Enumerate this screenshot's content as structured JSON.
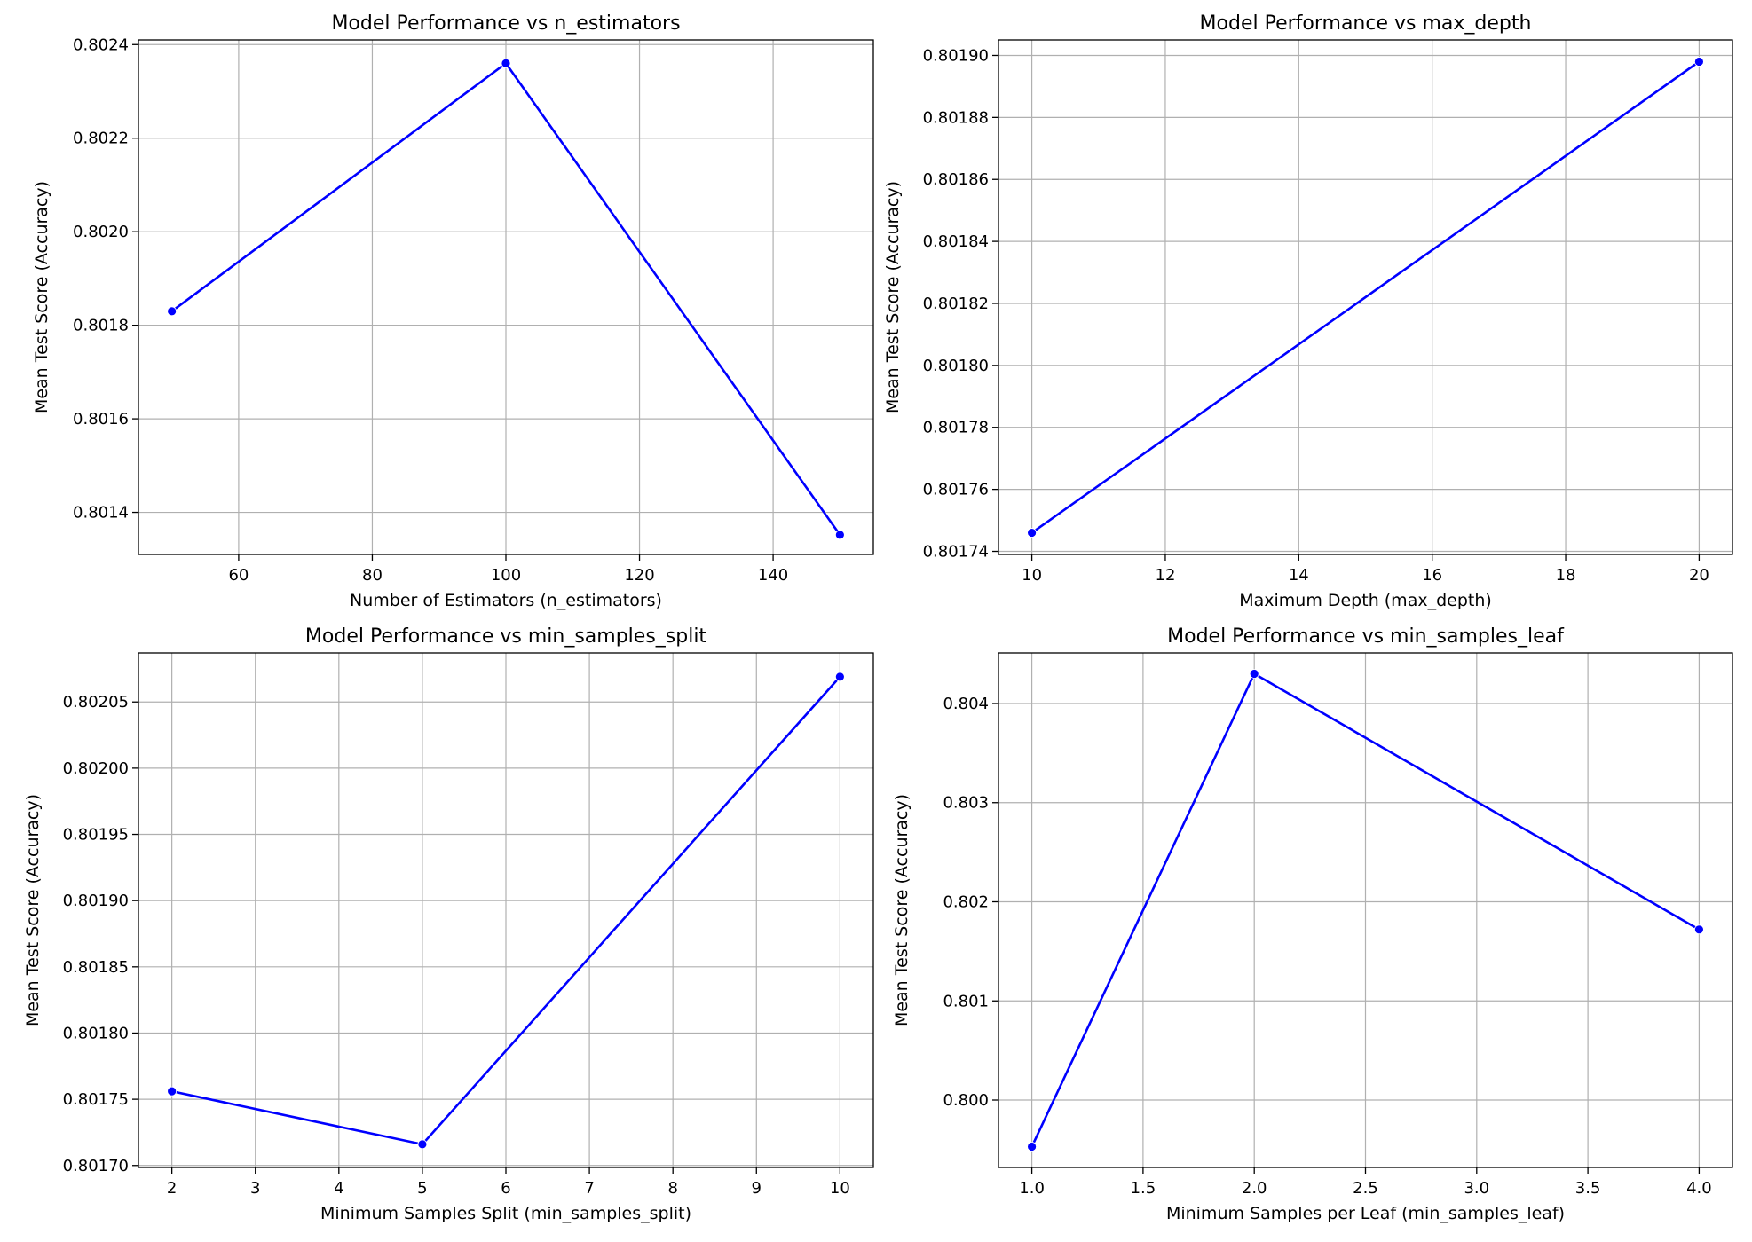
{
  "style": {
    "line_color": "#0000ff",
    "grid_color": "#b0b0b0",
    "background": "#ffffff"
  },
  "chart_data": [
    {
      "type": "line",
      "title": "Model Performance vs n_estimators",
      "xlabel": "Number of Estimators (n_estimators)",
      "ylabel": "Mean Test Score (Accuracy)",
      "grid": true,
      "marker": "circle",
      "x": [
        50,
        100,
        150
      ],
      "series": [
        {
          "values": [
            0.80183,
            0.80236,
            0.801352
          ]
        }
      ],
      "xlim": [
        45,
        155
      ],
      "ylim": [
        0.80131,
        0.80241
      ],
      "xticks": [
        60,
        80,
        100,
        120,
        140
      ],
      "xtick_labels": [
        "60",
        "80",
        "100",
        "120",
        "140"
      ],
      "yticks": [
        0.8014,
        0.8016,
        0.8018,
        0.802,
        0.8022,
        0.8024
      ],
      "ytick_labels": [
        "0.8014",
        "0.8016",
        "0.8018",
        "0.8020",
        "0.8022",
        "0.8024"
      ]
    },
    {
      "type": "line",
      "title": "Model Performance vs max_depth",
      "xlabel": "Maximum Depth (max_depth)",
      "ylabel": "Mean Test Score (Accuracy)",
      "grid": true,
      "marker": "circle",
      "x": [
        10,
        20
      ],
      "series": [
        {
          "values": [
            0.801746,
            0.801898
          ]
        }
      ],
      "xlim": [
        9.5,
        20.5
      ],
      "ylim": [
        0.801739,
        0.801905
      ],
      "xticks": [
        10,
        12,
        14,
        16,
        18,
        20
      ],
      "xtick_labels": [
        "10",
        "12",
        "14",
        "16",
        "18",
        "20"
      ],
      "yticks": [
        0.80174,
        0.80176,
        0.80178,
        0.8018,
        0.80182,
        0.80184,
        0.80186,
        0.80188,
        0.8019
      ],
      "ytick_labels": [
        "0.80174",
        "0.80176",
        "0.80178",
        "0.80180",
        "0.80182",
        "0.80184",
        "0.80186",
        "0.80188",
        "0.80190"
      ]
    },
    {
      "type": "line",
      "title": "Model Performance vs min_samples_split",
      "xlabel": "Minimum Samples Split (min_samples_split)",
      "ylabel": "Mean Test Score (Accuracy)",
      "grid": true,
      "marker": "circle",
      "x": [
        2,
        5,
        10
      ],
      "series": [
        {
          "values": [
            0.801756,
            0.801716,
            0.802069
          ]
        }
      ],
      "xlim": [
        1.6,
        10.4
      ],
      "ylim": [
        0.8016985,
        0.802087
      ],
      "xticks": [
        2,
        3,
        4,
        5,
        6,
        7,
        8,
        9,
        10
      ],
      "xtick_labels": [
        "2",
        "3",
        "4",
        "5",
        "6",
        "7",
        "8",
        "9",
        "10"
      ],
      "yticks": [
        0.8017,
        0.80175,
        0.8018,
        0.80185,
        0.8019,
        0.80195,
        0.802,
        0.80205
      ],
      "ytick_labels": [
        "0.80170",
        "0.80175",
        "0.80180",
        "0.80185",
        "0.80190",
        "0.80195",
        "0.80200",
        "0.80205"
      ]
    },
    {
      "type": "line",
      "title": "Model Performance vs min_samples_leaf",
      "xlabel": "Minimum Samples per Leaf (min_samples_leaf)",
      "ylabel": "Mean Test Score (Accuracy)",
      "grid": true,
      "marker": "circle",
      "x": [
        1,
        2,
        4
      ],
      "series": [
        {
          "values": [
            0.79953,
            0.8043,
            0.80172
          ]
        }
      ],
      "xlim": [
        0.85,
        4.15
      ],
      "ylim": [
        0.79932,
        0.80451
      ],
      "xticks": [
        1.0,
        1.5,
        2.0,
        2.5,
        3.0,
        3.5,
        4.0
      ],
      "xtick_labels": [
        "1.0",
        "1.5",
        "2.0",
        "2.5",
        "3.0",
        "3.5",
        "4.0"
      ],
      "yticks": [
        0.8,
        0.801,
        0.802,
        0.803,
        0.804
      ],
      "ytick_labels": [
        "0.800",
        "0.801",
        "0.802",
        "0.803",
        "0.804"
      ]
    }
  ]
}
